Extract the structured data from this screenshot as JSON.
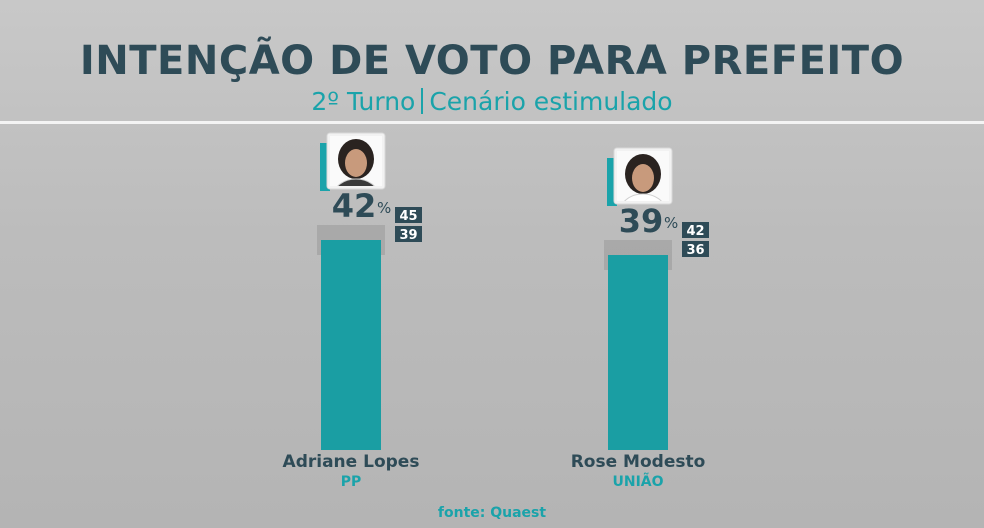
{
  "header": {
    "title": "INTENÇÃO DE VOTO PARA PREFEITO",
    "subtitle_left": "2º Turno",
    "subtitle_right": "Cenário estimulado"
  },
  "footer": {
    "source": "fonte: Quaest"
  },
  "colors": {
    "bar": "#1a9ea3",
    "title": "#2e4b57",
    "accent": "#1aa3aa",
    "range_box": "#2e4b57",
    "margin_band": "#999999"
  },
  "chart_data": {
    "type": "bar",
    "title": "INTENÇÃO DE VOTO PARA PREFEITO",
    "subtitle": "2º Turno | Cenário estimulado",
    "unit": "%",
    "ylim": [
      0,
      100
    ],
    "grid": false,
    "categories": [
      "Adriane Lopes",
      "Rose Modesto"
    ],
    "parties": [
      "PP",
      "UNIÃO"
    ],
    "values": [
      42,
      39
    ],
    "margin_high": [
      45,
      42
    ],
    "margin_low": [
      39,
      36
    ]
  }
}
